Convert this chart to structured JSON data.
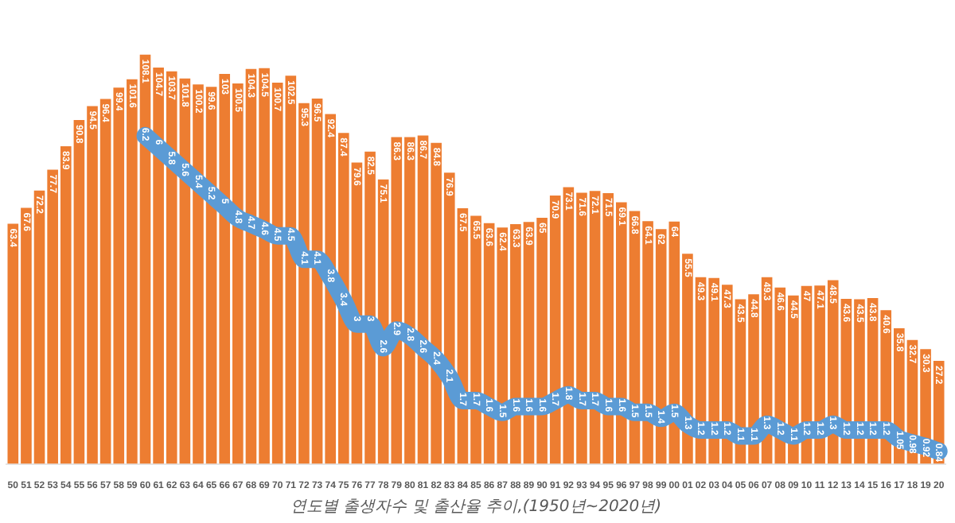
{
  "chart_data": {
    "type": "bar",
    "title": "연도별 출생자수 및 출산율 추이,(1950년~2020년)",
    "categories": [
      "50",
      "51",
      "52",
      "53",
      "54",
      "55",
      "56",
      "57",
      "58",
      "59",
      "60",
      "61",
      "62",
      "63",
      "64",
      "65",
      "66",
      "67",
      "68",
      "69",
      "70",
      "71",
      "72",
      "73",
      "74",
      "75",
      "76",
      "77",
      "78",
      "79",
      "80",
      "81",
      "82",
      "83",
      "84",
      "85",
      "86",
      "87",
      "88",
      "89",
      "90",
      "91",
      "92",
      "93",
      "94",
      "95",
      "96",
      "97",
      "98",
      "99",
      "00",
      "01",
      "02",
      "03",
      "04",
      "05",
      "06",
      "07",
      "08",
      "09",
      "10",
      "11",
      "12",
      "13",
      "14",
      "15",
      "16",
      "17",
      "18",
      "19",
      "20"
    ],
    "series": [
      {
        "color": "#ed7d31",
        "values": [
          63.4,
          67.6,
          72.2,
          77.7,
          83.9,
          90.8,
          94.5,
          96.4,
          99.4,
          101.6,
          108.1,
          104.7,
          103.7,
          101.8,
          100.2,
          99.6,
          103.0,
          100.5,
          104.3,
          104.5,
          100.7,
          102.5,
          95.3,
          96.5,
          92.4,
          87.4,
          79.6,
          82.5,
          75.1,
          86.3,
          86.3,
          86.7,
          84.8,
          76.9,
          67.5,
          65.5,
          63.6,
          62.4,
          63.3,
          63.9,
          65.0,
          70.9,
          73.1,
          71.6,
          72.1,
          71.5,
          69.1,
          66.8,
          64.1,
          62.0,
          64.0,
          55.5,
          49.3,
          49.1,
          47.3,
          43.5,
          44.8,
          49.3,
          46.6,
          44.5,
          47.0,
          47.1,
          48.5,
          43.6,
          43.5,
          43.8,
          40.6,
          35.8,
          32.7,
          30.3,
          27.2
        ]
      },
      {
        "type": "line",
        "axis": "y2",
        "color": "#5b9bd5",
        "values": [
          null,
          null,
          null,
          null,
          null,
          null,
          null,
          null,
          null,
          null,
          6.2,
          6.0,
          5.8,
          5.6,
          5.4,
          5.2,
          5.0,
          4.8,
          4.7,
          4.6,
          4.5,
          4.5,
          4.1,
          4.1,
          3.8,
          3.4,
          3.0,
          3.0,
          2.6,
          2.9,
          2.8,
          2.6,
          2.4,
          2.1,
          1.7,
          1.7,
          1.6,
          1.5,
          1.6,
          1.6,
          1.6,
          1.7,
          1.8,
          1.7,
          1.7,
          1.6,
          1.6,
          1.5,
          1.5,
          1.4,
          1.5,
          1.3,
          1.2,
          1.2,
          1.2,
          1.1,
          1.1,
          1.3,
          1.2,
          1.1,
          1.2,
          1.2,
          1.3,
          1.2,
          1.2,
          1.2,
          1.2,
          1.05,
          0.98,
          0.92,
          0.84
        ]
      }
    ],
    "data_labels": true,
    "legend": false,
    "tick_labels": "x",
    "marker": "none"
  }
}
